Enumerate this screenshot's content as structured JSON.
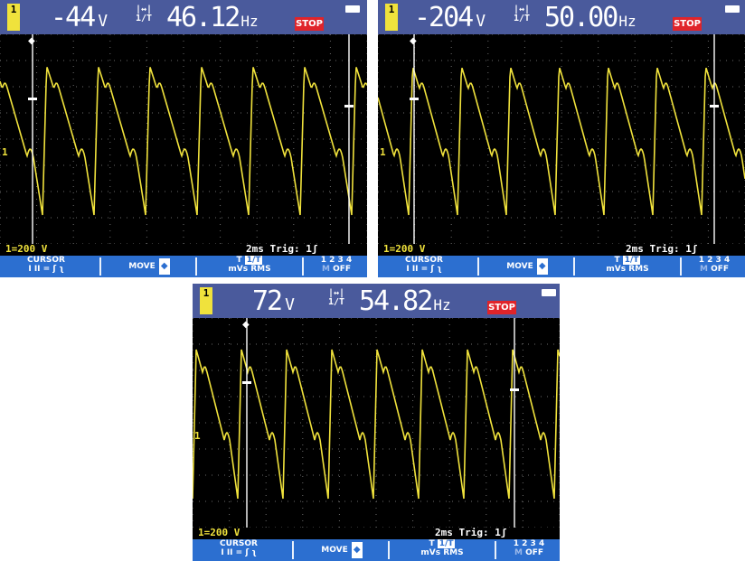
{
  "screens": [
    {
      "channel_label": "1",
      "voltage_value": "-44",
      "voltage_unit": "V",
      "freq_icon_top": "|↔|",
      "freq_icon_bottom": "1/T",
      "frequency_value": "46.12",
      "frequency_unit": "Hz",
      "stop_label": "STOP",
      "scale_label": "1=200 V",
      "time_trig_label": "2ms Trig: 1ʃ",
      "menu": {
        "cursor_label": "CURSOR",
        "cursor_sub": "I II = ʃ ʅ",
        "move_label": "MOVE",
        "t_label": "T",
        "t_sub": "mVs",
        "onet_label": "1/T",
        "rms_label": "RMS",
        "ch_label": "1 2 3 4",
        "m_label": "M",
        "off_label": "OFF"
      }
    },
    {
      "channel_label": "1",
      "voltage_value": "-204",
      "voltage_unit": "V",
      "freq_icon_top": "|↔|",
      "freq_icon_bottom": "1/T",
      "frequency_value": "50.00",
      "frequency_unit": "Hz",
      "stop_label": "STOP",
      "scale_label": "1=200 V",
      "time_trig_label": "2ms Trig: 1ʃ",
      "menu": {
        "cursor_label": "CURSOR",
        "cursor_sub": "I II = ʃ ʅ",
        "move_label": "MOVE",
        "t_label": "T",
        "t_sub": "mVs",
        "onet_label": "1/T",
        "rms_label": "RMS",
        "ch_label": "1 2 3 4",
        "m_label": "M",
        "off_label": "OFF"
      }
    },
    {
      "channel_label": "1",
      "voltage_value": "72",
      "voltage_unit": "V",
      "freq_icon_top": "|↔|",
      "freq_icon_bottom": "1/T",
      "frequency_value": "54.82",
      "frequency_unit": "Hz",
      "stop_label": "STOP",
      "scale_label": "1=200 V",
      "time_trig_label": "2ms Trig: 1ʃ",
      "menu": {
        "cursor_label": "CURSOR",
        "cursor_sub": "I II = ʃ ʅ",
        "move_label": "MOVE",
        "t_label": "T",
        "t_sub": "mVs",
        "onet_label": "1/T",
        "rms_label": "RMS",
        "ch_label": "1 2 3 4",
        "m_label": "M",
        "off_label": "OFF"
      }
    }
  ],
  "colors": {
    "trace": "#f0e23c",
    "topbar": "#4a5a9c",
    "menubar": "#2c6fd0",
    "stop": "#e0242a",
    "background": "#000000"
  }
}
